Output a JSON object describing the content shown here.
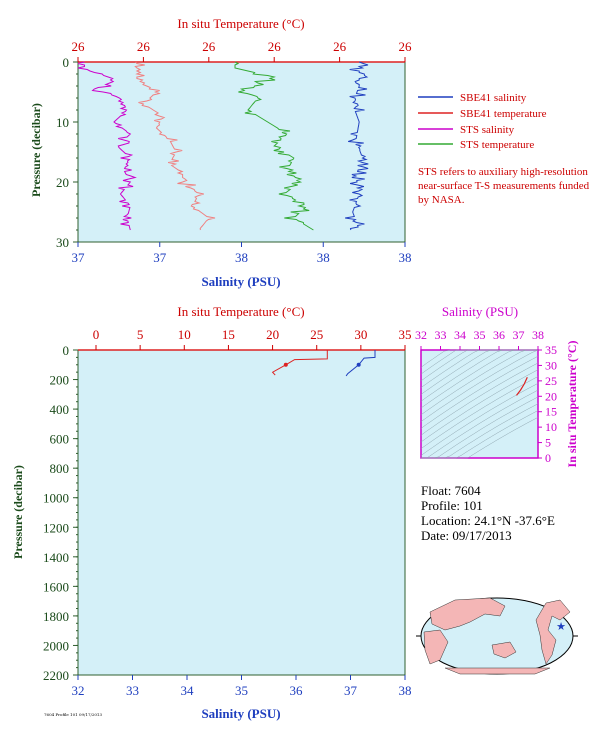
{
  "chart_data": [
    {
      "type": "line",
      "top_title": "In situ Temperature (°C)",
      "top_ticks": [
        "26",
        "26",
        "26",
        "26",
        "26",
        "26"
      ],
      "xlabel": "Salinity (PSU)",
      "x_ticks": [
        "37",
        "37",
        "38",
        "38",
        "38"
      ],
      "ylabel": "Pressure (decibar)",
      "y_ticks": [
        "0",
        "10",
        "20",
        "30"
      ],
      "ylim": [
        30,
        0
      ],
      "legend": [
        {
          "name": "SBE41 salinity",
          "color": "#1f3fbf"
        },
        {
          "name": "SBE41 temperature",
          "color": "#dd2222"
        },
        {
          "name": "STS salinity",
          "color": "#cc00cc"
        },
        {
          "name": "STS temperature",
          "color": "#33aa33"
        }
      ],
      "note": "STS refers to auxiliary high-resolution near-surface T-S measurements funded by NASA.",
      "series": [
        {
          "name": "STS salinity",
          "color": "#cc00cc",
          "profile": [
            [
              0.02,
              1.2
            ],
            [
              0.12,
              3.0
            ],
            [
              0.05,
              4.5
            ],
            [
              0.13,
              6.0
            ],
            [
              0.15,
              8.0
            ],
            [
              0.11,
              10
            ],
            [
              0.16,
              12
            ],
            [
              0.12,
              14
            ],
            [
              0.16,
              16
            ],
            [
              0.14,
              18
            ],
            [
              0.16,
              20
            ],
            [
              0.13,
              22
            ],
            [
              0.16,
              24
            ],
            [
              0.15,
              26
            ],
            [
              0.16,
              28
            ]
          ]
        },
        {
          "name": "STS temperature (pink)",
          "color": "#f08080",
          "profile": [
            [
              0.18,
              3.0
            ],
            [
              0.24,
              5.0
            ],
            [
              0.2,
              7.0
            ],
            [
              0.26,
              9.0
            ],
            [
              0.24,
              11
            ],
            [
              0.28,
              13
            ],
            [
              0.3,
              15
            ],
            [
              0.28,
              17
            ],
            [
              0.32,
              18.5
            ],
            [
              0.32,
              20
            ],
            [
              0.37,
              22
            ],
            [
              0.35,
              24
            ],
            [
              0.4,
              26
            ],
            [
              0.37,
              28
            ]
          ]
        },
        {
          "name": "STS temperature",
          "color": "#33aa33",
          "profile": [
            [
              0.48,
              1.0
            ],
            [
              0.6,
              2.5
            ],
            [
              0.5,
              4.5
            ],
            [
              0.55,
              6.0
            ],
            [
              0.52,
              8.0
            ],
            [
              0.58,
              10
            ],
            [
              0.64,
              12
            ],
            [
              0.6,
              14
            ],
            [
              0.66,
              16
            ],
            [
              0.64,
              18
            ],
            [
              0.68,
              20
            ],
            [
              0.63,
              22
            ],
            [
              0.7,
              24
            ],
            [
              0.66,
              26
            ],
            [
              0.72,
              28
            ]
          ]
        },
        {
          "name": "SBE41 salinity",
          "color": "#1f3fbf",
          "profile": [
            [
              0.86,
              4.0
            ],
            [
              0.84,
              7.0
            ],
            [
              0.86,
              10
            ],
            [
              0.85,
              13
            ],
            [
              0.87,
              16
            ],
            [
              0.85,
              19
            ],
            [
              0.86,
              22
            ],
            [
              0.84,
              25
            ],
            [
              0.86,
              28
            ]
          ]
        }
      ]
    },
    {
      "type": "line",
      "top_title": "In situ Temperature (°C)",
      "top_ticks": [
        "0",
        "5",
        "10",
        "15",
        "20",
        "25",
        "30",
        "35"
      ],
      "xlabel": "Salinity (PSU)",
      "x_ticks": [
        "32",
        "33",
        "34",
        "35",
        "36",
        "37",
        "38"
      ],
      "ylabel": "Pressure (decibar)",
      "y_ticks": [
        "0",
        "200",
        "400",
        "600",
        "800",
        "1000",
        "1200",
        "1400",
        "1600",
        "1800",
        "2000",
        "2200"
      ],
      "xlim": [
        32,
        38
      ],
      "ylim": [
        2200,
        0
      ],
      "series": [
        {
          "name": "SBE41 temperature",
          "color": "#dd2222",
          "points": [
            [
              26.2,
              0
            ],
            [
              26.2,
              60
            ],
            [
              22.5,
              65
            ],
            [
              21.5,
              100
            ],
            [
              20.0,
              150
            ],
            [
              20.3,
              170
            ]
          ]
        },
        {
          "name": "SBE41 salinity",
          "color": "#1f3fbf",
          "points": [
            [
              37.45,
              0
            ],
            [
              37.45,
              50
            ],
            [
              37.25,
              55
            ],
            [
              37.15,
              100
            ],
            [
              36.95,
              160
            ],
            [
              36.92,
              175
            ]
          ]
        }
      ]
    },
    {
      "type": "line",
      "title": "Salinity (PSU)",
      "x_ticks": [
        "32",
        "33",
        "34",
        "35",
        "36",
        "37",
        "38"
      ],
      "ylabel": "In situ Temperature (°C)",
      "y_ticks": [
        "0",
        "5",
        "10",
        "15",
        "20",
        "25",
        "30",
        "35"
      ],
      "xlim": [
        32,
        38
      ],
      "ylim": [
        0,
        35
      ],
      "series": [
        {
          "name": "T-S",
          "color": "#dd2222",
          "points": [
            [
              36.9,
              20.3
            ],
            [
              37.1,
              22.0
            ],
            [
              37.3,
              24.0
            ],
            [
              37.45,
              26.2
            ]
          ]
        }
      ]
    }
  ],
  "info": {
    "float_label": "Float:",
    "float_value": "7604",
    "profile_label": "Profile:",
    "profile_value": "101",
    "location_label": "Location:",
    "location_value": "24.1°N  -37.6°E",
    "date_label": "Date:",
    "date_value": "09/17/2013"
  },
  "footer": "7604 Profile 101 09/17/2013"
}
